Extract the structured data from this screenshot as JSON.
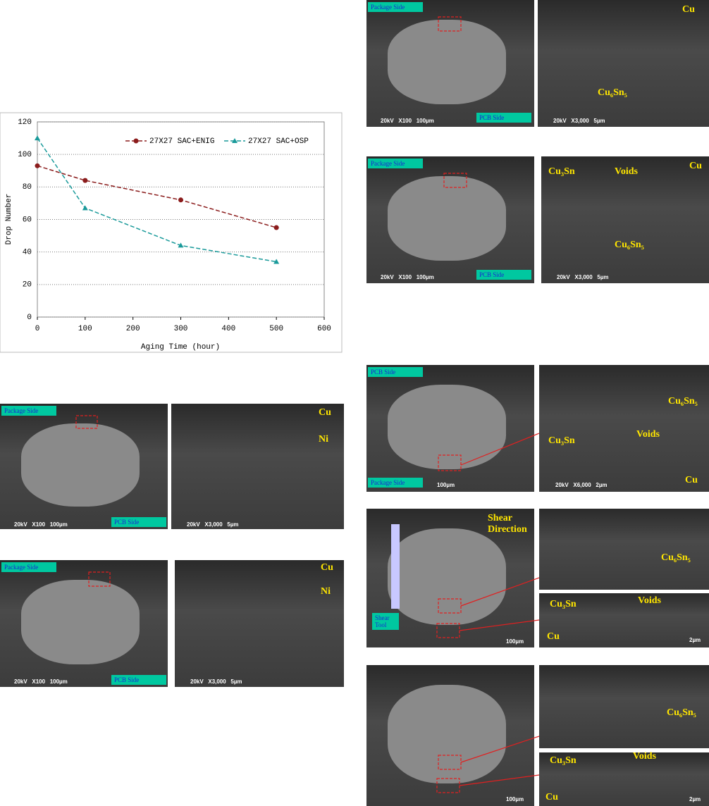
{
  "chart_data": {
    "type": "line",
    "xlabel": "Aging Time (hour)",
    "ylabel": "Drop Number",
    "x": [
      0,
      100,
      300,
      500
    ],
    "series": [
      {
        "name": "27X27 SAC+ENIG",
        "color": "#8b1c1c",
        "marker": "circle",
        "values": [
          93,
          84,
          72,
          55
        ]
      },
      {
        "name": "27X27 SAC+OSP",
        "color": "#1a9a9a",
        "marker": "triangle",
        "values": [
          110,
          67,
          44,
          34
        ]
      }
    ],
    "xlim": [
      0,
      600
    ],
    "xticks": [
      0,
      100,
      200,
      300,
      400,
      500,
      600
    ],
    "ylim": [
      0,
      120
    ],
    "yticks": [
      0,
      20,
      40,
      60,
      80,
      100,
      120
    ],
    "grid": true,
    "legend": "top-right"
  },
  "micrographs": [
    {
      "labels": [
        "Package Side",
        "PCB Side",
        "20kV   X100   100µm"
      ]
    },
    {
      "labels": [
        "Cu",
        "Ni",
        "20kV   X3,000   5µm"
      ]
    },
    {
      "labels": [
        "Package Side",
        "PCB Side",
        "20kV   X100   100µm"
      ]
    },
    {
      "labels": [
        "Cu",
        "Ni",
        "20kV   X3,000   5µm"
      ]
    },
    {
      "labels": [
        "Package Side",
        "PCB Side",
        "20kV   X100   100µm"
      ]
    },
    {
      "labels": [
        "Cu",
        "Cu₆Sn₅",
        "20kV   X3,000   5µm"
      ]
    },
    {
      "labels": [
        "Package Side",
        "PCB Side",
        "20kV   X100   100µm"
      ]
    },
    {
      "labels": [
        "Cu₃Sn",
        "Voids",
        "Cu",
        "Cu₆Sn₅",
        "20kV   X3,000   5µm"
      ]
    },
    {
      "labels": [
        "PCB Side",
        "Package Side",
        "100µm"
      ]
    },
    {
      "labels": [
        "Cu₆Sn₅",
        "Cu₃Sn",
        "Voids",
        "Cu",
        "20kV   X6,000   2µm"
      ]
    },
    {
      "labels": [
        "Shear Direction",
        "Shear Tool",
        "100µm"
      ]
    },
    {
      "labels": [
        "Cu₆Sn₅"
      ]
    },
    {
      "labels": [
        "Cu₃Sn",
        "Voids",
        "Cu",
        "2µm"
      ]
    },
    {
      "labels": [
        "100µm"
      ]
    },
    {
      "labels": [
        "Cu₆Sn₅"
      ]
    },
    {
      "labels": [
        "Cu₃Sn",
        "Voids",
        "Cu",
        "2µm"
      ]
    }
  ]
}
